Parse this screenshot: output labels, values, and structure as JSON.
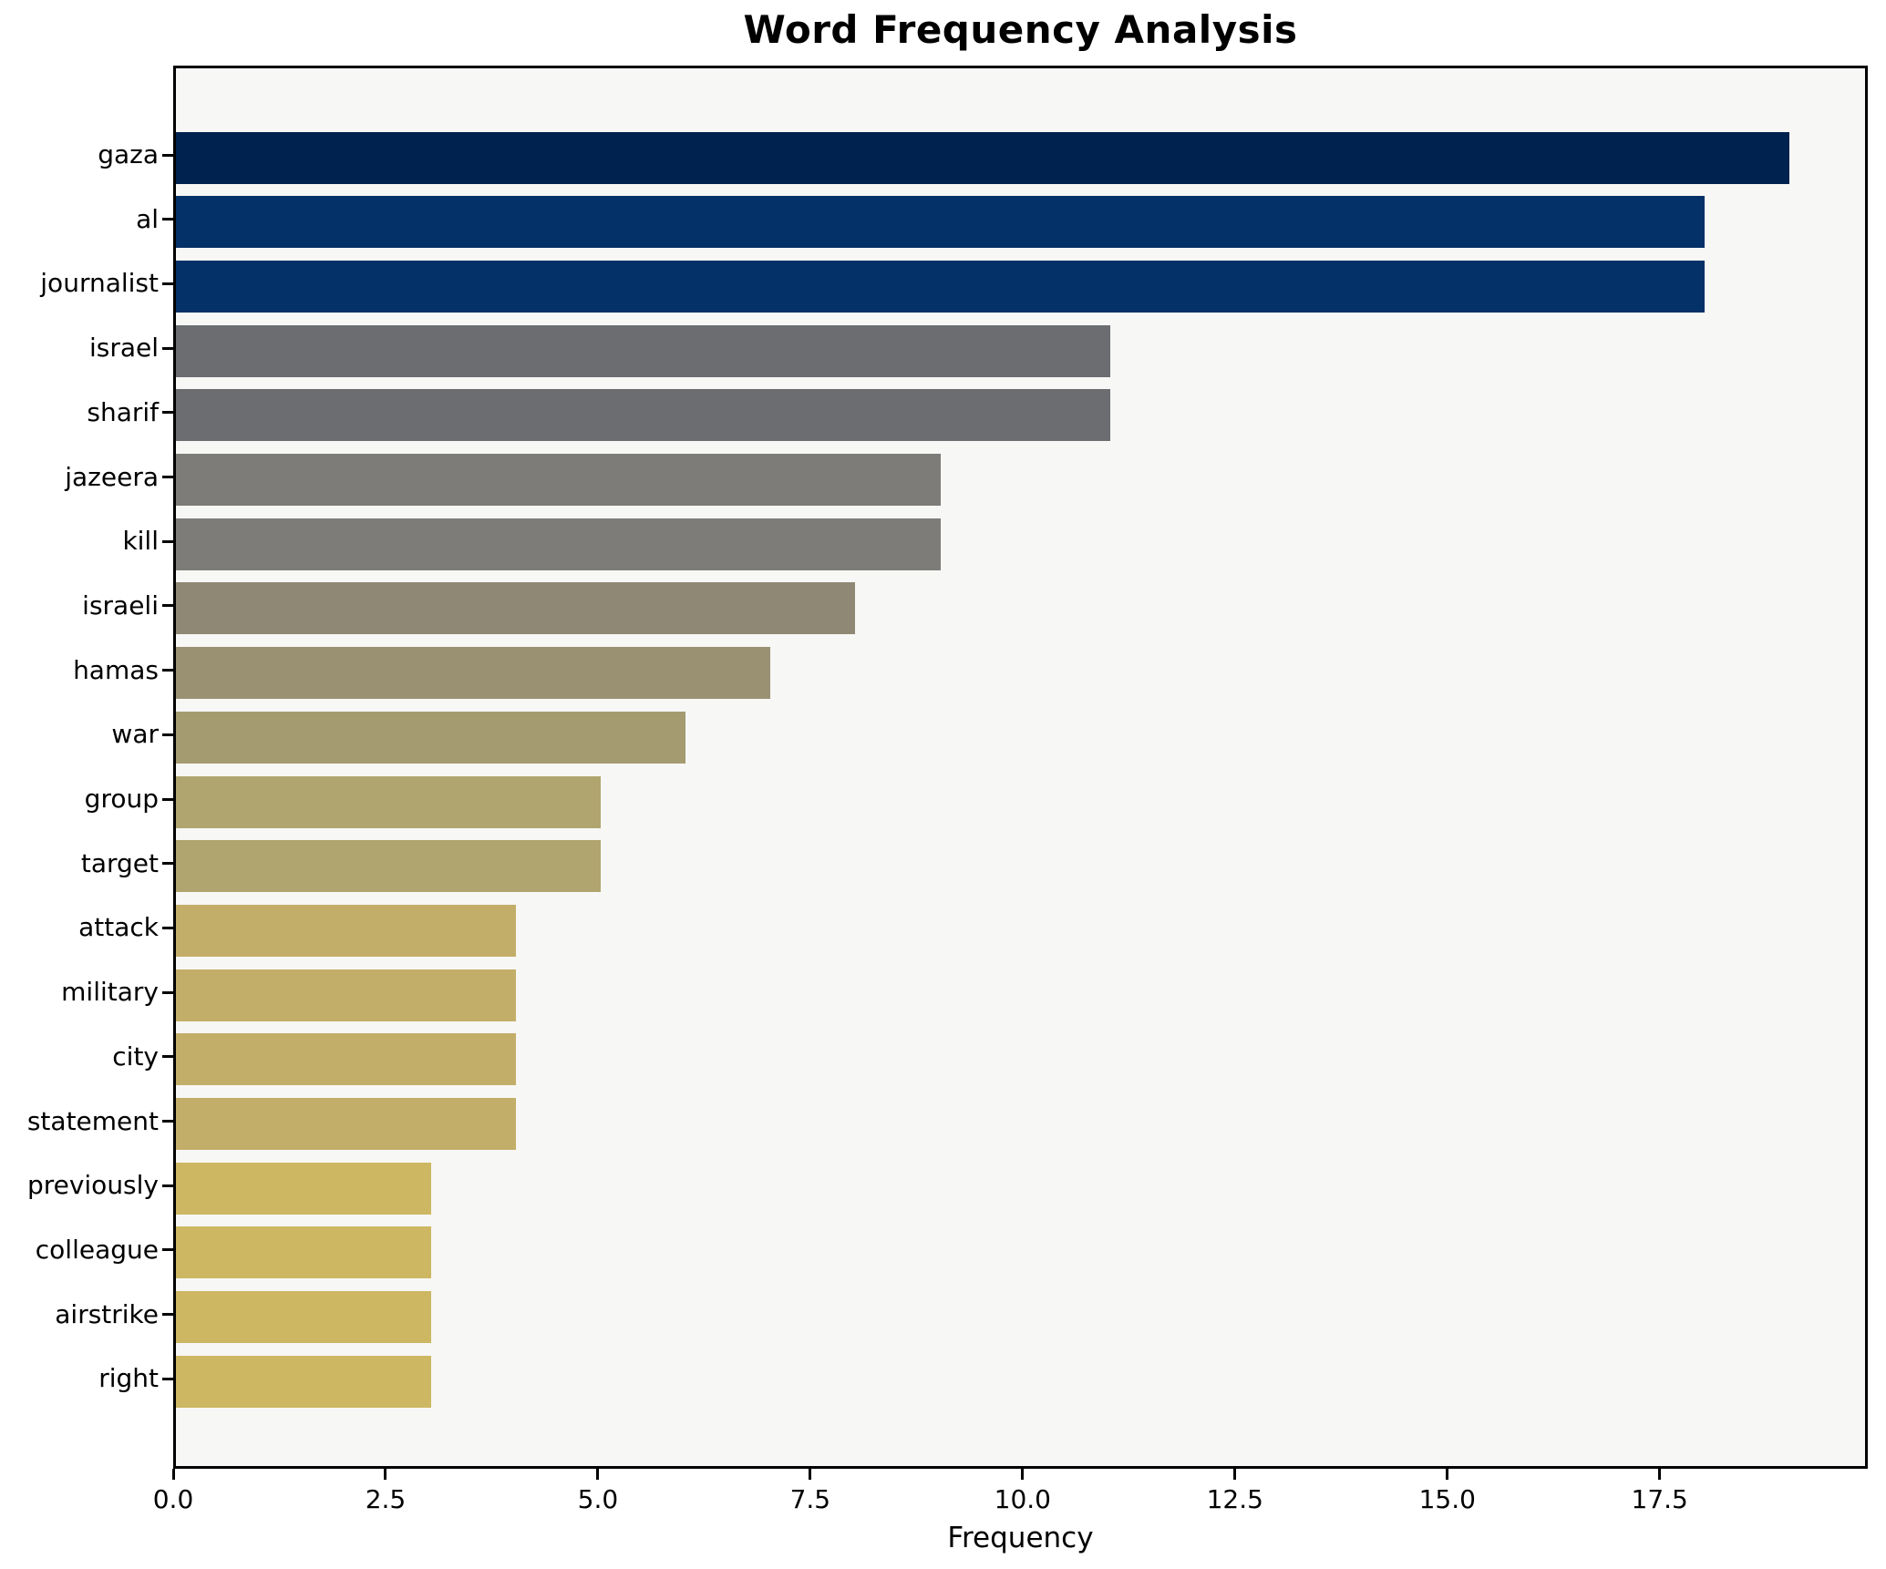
{
  "chart_data": {
    "type": "bar",
    "orientation": "horizontal",
    "title": "Word Frequency Analysis",
    "xlabel": "Frequency",
    "ylabel": "",
    "categories": [
      "gaza",
      "al",
      "journalist",
      "israel",
      "sharif",
      "jazeera",
      "kill",
      "israeli",
      "hamas",
      "war",
      "group",
      "target",
      "attack",
      "military",
      "city",
      "statement",
      "previously",
      "colleague",
      "airstrike",
      "right"
    ],
    "values": [
      19,
      18,
      18,
      11,
      11,
      9,
      9,
      8,
      7,
      6,
      5,
      5,
      4,
      4,
      4,
      4,
      3,
      3,
      3,
      3
    ],
    "bar_colors": [
      "#00224e",
      "#053169",
      "#053169",
      "#6b6d71",
      "#6b6d71",
      "#7e7c78",
      "#7e7c78",
      "#8e8875",
      "#999172",
      "#a59b70",
      "#b0a56e",
      "#b0a56e",
      "#c3ae69",
      "#c3ae69",
      "#c3ae69",
      "#c3ae69",
      "#cdb763",
      "#cdb763",
      "#cdb763",
      "#cdb763"
    ],
    "x_ticks": [
      0,
      2.5,
      5,
      7.5,
      10,
      12.5,
      15,
      17.5
    ],
    "x_tick_labels": [
      "0.0",
      "2.5",
      "5.0",
      "7.5",
      "10.0",
      "12.5",
      "15.0",
      "17.5"
    ],
    "xlim": [
      0,
      19.95
    ],
    "grid": false,
    "legend": null,
    "colormap": "cividis",
    "plot_bg": "#f7f7f5",
    "fig_bg": "#ffffff",
    "spine_color": "#000000"
  }
}
